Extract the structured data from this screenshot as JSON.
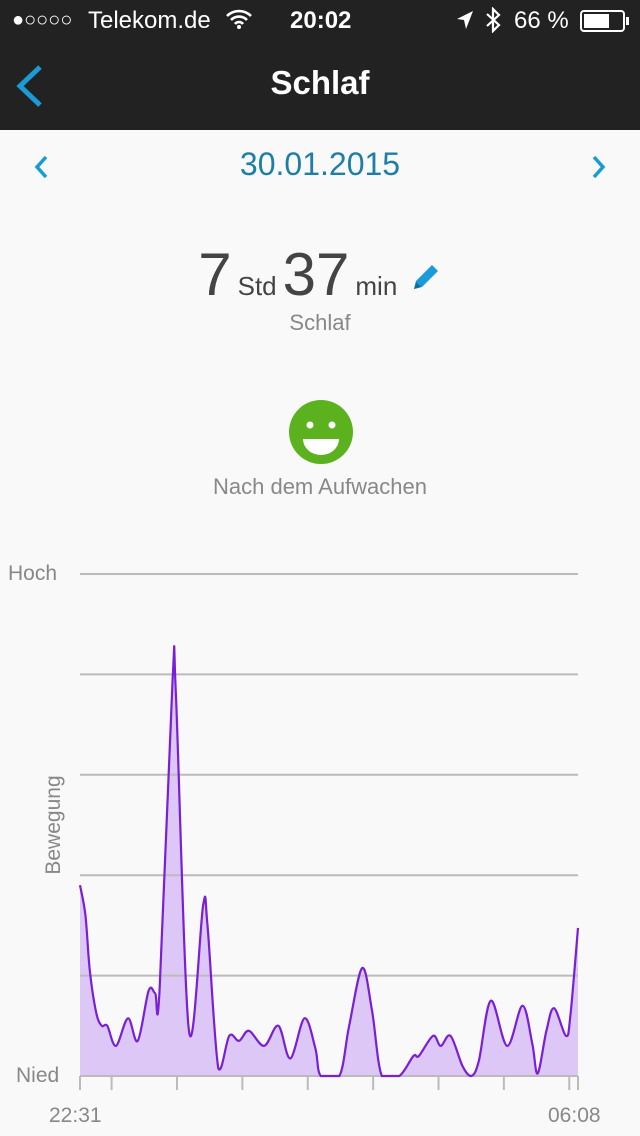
{
  "status_bar": {
    "signal": "●○○○○",
    "carrier": "Telekom.de",
    "time": "20:02",
    "battery": "66 %",
    "icons": [
      "wifi-icon",
      "location-icon",
      "bluetooth-icon",
      "battery-icon"
    ]
  },
  "nav": {
    "title": "Schlaf",
    "back_icon": "chevron-left-icon"
  },
  "date_bar": {
    "date": "30.01.2015",
    "prev_icon": "chevron-left-icon",
    "next_icon": "chevron-right-icon"
  },
  "summary": {
    "hours": "7",
    "hours_unit": "Std",
    "minutes": "37",
    "minutes_unit": "min",
    "label": "Schlaf",
    "edit_icon": "pencil-icon"
  },
  "mood": {
    "icon": "happy-face-icon",
    "label": "Nach dem Aufwachen",
    "color": "#5cb21e"
  },
  "colors": {
    "accent": "#1a9ad6",
    "date": "#1d7ea8",
    "line": "#7a1fd6",
    "fill": "#dcc7f7"
  },
  "chart_data": {
    "type": "area",
    "ylabel": "Bewegung",
    "y_tick_labels": {
      "top": "Hoch",
      "bottom": "Nied"
    },
    "ylim": [
      0,
      100
    ],
    "x_tick_labels": [
      "22:31",
      "06:08"
    ],
    "x_ticks": [
      "22:31",
      "23:00",
      "00:00",
      "01:00",
      "02:00",
      "03:00",
      "04:00",
      "05:00",
      "06:00",
      "06:08"
    ],
    "grid": true,
    "x": [
      "22:31",
      "22:36",
      "22:40",
      "22:46",
      "22:51",
      "22:56",
      "23:04",
      "23:15",
      "23:24",
      "23:34",
      "23:40",
      "23:44",
      "23:56",
      "23:59",
      "00:11",
      "00:24",
      "00:28",
      "00:38",
      "00:48",
      "00:57",
      "01:06",
      "01:20",
      "01:33",
      "01:44",
      "01:57",
      "02:07",
      "02:12",
      "02:29",
      "02:38",
      "02:50",
      "02:59",
      "03:08",
      "03:24",
      "03:37",
      "03:42",
      "03:55",
      "04:02",
      "04:11",
      "04:22",
      "04:30",
      "04:37",
      "04:48",
      "05:03",
      "05:17",
      "05:26",
      "05:31",
      "05:39",
      "05:46",
      "05:57",
      "06:01",
      "06:08"
    ],
    "values": [
      38,
      32,
      21,
      12.5,
      10,
      10,
      6,
      11.5,
      7,
      17,
      16.5,
      17,
      79,
      76,
      9,
      34,
      30,
      1.5,
      8,
      7,
      9,
      6,
      10,
      3.5,
      11.5,
      5.5,
      0,
      0,
      10,
      21.5,
      13,
      0,
      0,
      4,
      4,
      8,
      6,
      8,
      2,
      0,
      3,
      15,
      6,
      14,
      6.5,
      0.5,
      9,
      13.5,
      8,
      12,
      29.5
    ]
  }
}
